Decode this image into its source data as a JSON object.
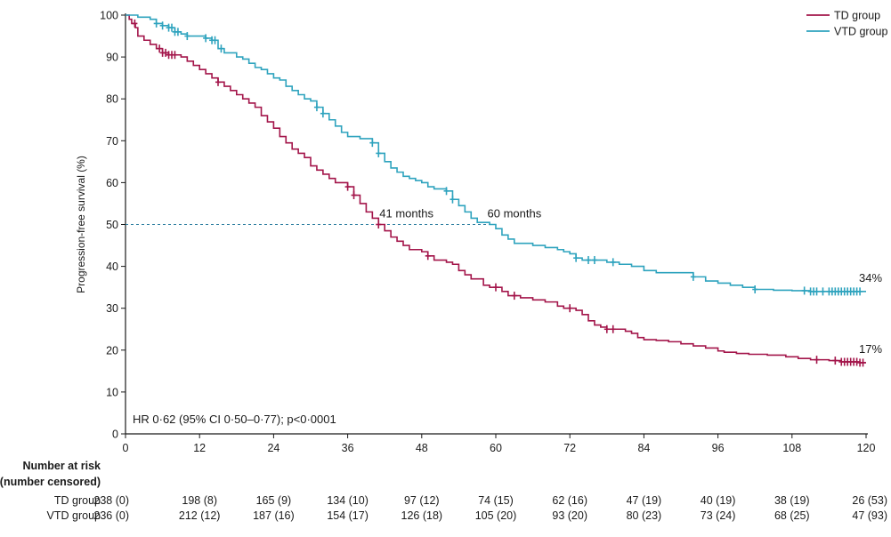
{
  "chart_data": {
    "type": "line",
    "ylabel": "Progression-free survival (%)",
    "xlabel": "",
    "xlim": [
      0,
      120
    ],
    "ylim": [
      0,
      100
    ],
    "x_ticks": [
      0,
      12,
      24,
      36,
      48,
      60,
      72,
      84,
      96,
      108,
      120
    ],
    "y_ticks": [
      0,
      10,
      20,
      30,
      40,
      50,
      60,
      70,
      80,
      90,
      100
    ],
    "grid": false,
    "legend_position": "top-right",
    "series": [
      {
        "name": "TD group",
        "color": "#a3154a",
        "end_label": "17%",
        "points": [
          [
            0,
            100
          ],
          [
            0.6,
            99
          ],
          [
            1,
            98
          ],
          [
            1.6,
            97
          ],
          [
            2,
            95
          ],
          [
            3,
            94
          ],
          [
            4,
            93
          ],
          [
            5,
            92
          ],
          [
            6,
            91
          ],
          [
            7,
            90.5
          ],
          [
            9,
            90
          ],
          [
            10,
            89
          ],
          [
            11,
            88
          ],
          [
            12,
            87
          ],
          [
            13,
            86
          ],
          [
            14,
            85
          ],
          [
            15,
            84
          ],
          [
            16,
            83
          ],
          [
            17,
            82
          ],
          [
            18,
            81
          ],
          [
            19,
            80
          ],
          [
            20,
            79
          ],
          [
            21,
            78
          ],
          [
            22,
            76
          ],
          [
            23,
            74.5
          ],
          [
            24,
            73
          ],
          [
            25,
            71
          ],
          [
            26,
            69.5
          ],
          [
            27,
            68
          ],
          [
            28,
            67
          ],
          [
            29,
            66
          ],
          [
            30,
            64
          ],
          [
            31,
            63
          ],
          [
            32,
            62
          ],
          [
            33,
            61
          ],
          [
            34,
            60
          ],
          [
            36,
            59
          ],
          [
            37,
            57
          ],
          [
            38,
            55
          ],
          [
            39,
            53
          ],
          [
            40,
            51.5
          ],
          [
            41,
            50
          ],
          [
            42,
            48.5
          ],
          [
            43,
            47
          ],
          [
            44,
            46
          ],
          [
            45,
            45
          ],
          [
            46,
            44
          ],
          [
            48,
            43.5
          ],
          [
            49,
            42.5
          ],
          [
            50,
            41.5
          ],
          [
            52,
            41
          ],
          [
            53,
            40.5
          ],
          [
            54,
            39
          ],
          [
            55,
            38
          ],
          [
            56,
            37
          ],
          [
            58,
            35.5
          ],
          [
            59,
            35
          ],
          [
            61,
            34
          ],
          [
            62,
            33
          ],
          [
            64,
            32.5
          ],
          [
            66,
            32
          ],
          [
            68,
            31.5
          ],
          [
            70,
            30.5
          ],
          [
            71,
            30
          ],
          [
            73,
            29.5
          ],
          [
            74,
            28.5
          ],
          [
            75,
            27
          ],
          [
            76,
            26
          ],
          [
            77,
            25.5
          ],
          [
            78,
            25
          ],
          [
            81,
            24.5
          ],
          [
            82,
            24
          ],
          [
            83,
            23
          ],
          [
            84,
            22.5
          ],
          [
            86,
            22.3
          ],
          [
            88,
            22
          ],
          [
            90,
            21.5
          ],
          [
            92,
            21
          ],
          [
            94,
            20.5
          ],
          [
            96,
            19.8
          ],
          [
            97,
            19.5
          ],
          [
            99,
            19.2
          ],
          [
            101,
            19
          ],
          [
            104,
            18.8
          ],
          [
            107,
            18.4
          ],
          [
            109,
            18
          ],
          [
            111,
            17.7
          ],
          [
            114,
            17.5
          ],
          [
            116,
            17.2
          ],
          [
            119,
            17
          ]
        ],
        "censor_x": [
          1.5,
          5.5,
          6,
          6.5,
          7,
          7.5,
          8,
          15,
          36,
          37,
          41,
          49,
          60,
          63,
          72,
          78,
          79,
          112,
          115,
          116,
          116.5,
          117,
          117.5,
          118,
          118.5,
          119,
          119.5
        ]
      },
      {
        "name": "VTD group",
        "color": "#2ea3be",
        "end_label": "34%",
        "points": [
          [
            0,
            100
          ],
          [
            2,
            99.5
          ],
          [
            4,
            99
          ],
          [
            5,
            98
          ],
          [
            6,
            97.5
          ],
          [
            7,
            97
          ],
          [
            8,
            96
          ],
          [
            9,
            95.5
          ],
          [
            10,
            95
          ],
          [
            13,
            94.5
          ],
          [
            14,
            94
          ],
          [
            15,
            92
          ],
          [
            16,
            91
          ],
          [
            18,
            90
          ],
          [
            19,
            89.5
          ],
          [
            20,
            88.5
          ],
          [
            21,
            87.5
          ],
          [
            22,
            87
          ],
          [
            23,
            86
          ],
          [
            24,
            85
          ],
          [
            25,
            84.5
          ],
          [
            26,
            83
          ],
          [
            27,
            82
          ],
          [
            28,
            81
          ],
          [
            29,
            80
          ],
          [
            30,
            79.5
          ],
          [
            31,
            78
          ],
          [
            32,
            76.5
          ],
          [
            33,
            75
          ],
          [
            34,
            73.5
          ],
          [
            35,
            72
          ],
          [
            36,
            71
          ],
          [
            38,
            70.5
          ],
          [
            40,
            69.5
          ],
          [
            41,
            67
          ],
          [
            42,
            65
          ],
          [
            43,
            63.5
          ],
          [
            44,
            62.5
          ],
          [
            45,
            61.5
          ],
          [
            46,
            61
          ],
          [
            47,
            60.5
          ],
          [
            48,
            60
          ],
          [
            49,
            59
          ],
          [
            50,
            58.5
          ],
          [
            52,
            58
          ],
          [
            53,
            56
          ],
          [
            54,
            54.5
          ],
          [
            55,
            53
          ],
          [
            56,
            51.5
          ],
          [
            57,
            50.5
          ],
          [
            59,
            50
          ],
          [
            60,
            49
          ],
          [
            61,
            47.5
          ],
          [
            62,
            46.5
          ],
          [
            63,
            45.5
          ],
          [
            66,
            45
          ],
          [
            68,
            44.5
          ],
          [
            70,
            44
          ],
          [
            71,
            43.5
          ],
          [
            72,
            43
          ],
          [
            73,
            42
          ],
          [
            74,
            41.5
          ],
          [
            76,
            41.5
          ],
          [
            78,
            41
          ],
          [
            80,
            40.5
          ],
          [
            82,
            40
          ],
          [
            84,
            39
          ],
          [
            86,
            38.5
          ],
          [
            89,
            38.5
          ],
          [
            92,
            37.5
          ],
          [
            94,
            36.5
          ],
          [
            96,
            36
          ],
          [
            98,
            35.5
          ],
          [
            100,
            35
          ],
          [
            102,
            34.5
          ],
          [
            105,
            34.3
          ],
          [
            108,
            34.2
          ],
          [
            111,
            34
          ],
          [
            115,
            34
          ],
          [
            120,
            34
          ]
        ],
        "censor_x": [
          5,
          6,
          7,
          7.5,
          8,
          8.5,
          10,
          13,
          14,
          14.5,
          15.5,
          31,
          32,
          40,
          41,
          52,
          53,
          73,
          75,
          76,
          79,
          92,
          102,
          110,
          111,
          111.5,
          112,
          113,
          114,
          114.5,
          115,
          115.5,
          116,
          116.5,
          117,
          117.5,
          118,
          118.5,
          119
        ]
      }
    ],
    "median_line": {
      "y": 50,
      "x_end": 59
    },
    "annotations": [
      {
        "text": "41 months",
        "x": 41,
        "y": 50
      },
      {
        "text": "60 months",
        "x": 60,
        "y": 50
      }
    ],
    "stat_text": "HR 0·62 (95% CI 0·50–0·77); p<0·0001"
  },
  "risk_table": {
    "heading": [
      "Number at risk",
      "(number censored)"
    ],
    "times": [
      0,
      12,
      24,
      36,
      48,
      60,
      72,
      84,
      96,
      108,
      120
    ],
    "rows": [
      {
        "label": "TD group",
        "values": [
          "238 (0)",
          "198 (8)",
          "165 (9)",
          "134 (10)",
          "97 (12)",
          "74 (15)",
          "62 (16)",
          "47 (19)",
          "40 (19)",
          "38 (19)",
          "26 (53)"
        ]
      },
      {
        "label": "VTD group",
        "values": [
          "236 (0)",
          "212 (12)",
          "187 (16)",
          "154 (17)",
          "126 (18)",
          "105 (20)",
          "93 (20)",
          "80 (23)",
          "73 (24)",
          "68 (25)",
          "47 (93)"
        ]
      }
    ]
  }
}
